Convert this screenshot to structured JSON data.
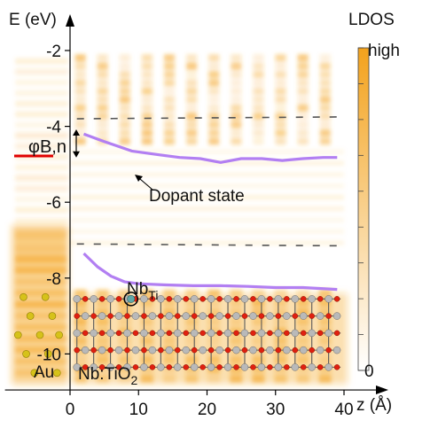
{
  "chart_data": {
    "type": "heatmap",
    "title": "",
    "xlabel": "z (Å)",
    "ylabel": "E (eV)",
    "xlim": [
      -9,
      41
    ],
    "ylim": [
      -10.9,
      -1.5
    ],
    "x_ticks": [
      0,
      10,
      20,
      30,
      40
    ],
    "y_ticks": [
      -2,
      -4,
      -6,
      -8,
      -10
    ],
    "colorbar": {
      "label": "LDOS",
      "high_label": "high",
      "low_label": "0",
      "colors": [
        "#ffffff",
        "#f3a21c"
      ]
    },
    "band_edge_dashed": [
      {
        "x": [
          1,
          40
        ],
        "y": [
          -3.8,
          -3.75
        ]
      },
      {
        "x": [
          1,
          40
        ],
        "y": [
          -7.1,
          -7.15
        ]
      }
    ],
    "dopant_state_lines": [
      {
        "x": [
          2,
          5,
          9,
          13,
          16,
          19,
          22,
          25,
          28,
          31,
          34,
          37,
          39
        ],
        "y": [
          -4.2,
          -4.4,
          -4.65,
          -4.75,
          -4.82,
          -4.85,
          -4.95,
          -4.85,
          -4.85,
          -4.9,
          -4.85,
          -4.82,
          -4.82
        ]
      },
      {
        "x": [
          2,
          4,
          6,
          8,
          10,
          14,
          18,
          22,
          26,
          30,
          34,
          39
        ],
        "y": [
          -7.35,
          -7.7,
          -7.95,
          -8.1,
          -8.15,
          -8.18,
          -8.2,
          -8.2,
          -8.22,
          -8.25,
          -8.25,
          -8.3
        ]
      }
    ],
    "fermi_marker": {
      "y": -4.78
    },
    "annotations": {
      "barrier": "φB,n",
      "dopant_state": "Dopant state",
      "nb_main": "Nb",
      "nb_sub": "Ti",
      "au": "Au",
      "oxide_main": "Nb:TiO",
      "oxide_sub": "2"
    },
    "colors": {
      "ldos": "#f3a21c",
      "dopant_line": "#b27ff2",
      "fermi": "#e00000",
      "dashed": "#555555",
      "ti_atom": "#b9b9b9",
      "o_atom": "#e0200f",
      "au_atom": "#d6c21a",
      "nb_atom": "#5fa8a8"
    }
  }
}
